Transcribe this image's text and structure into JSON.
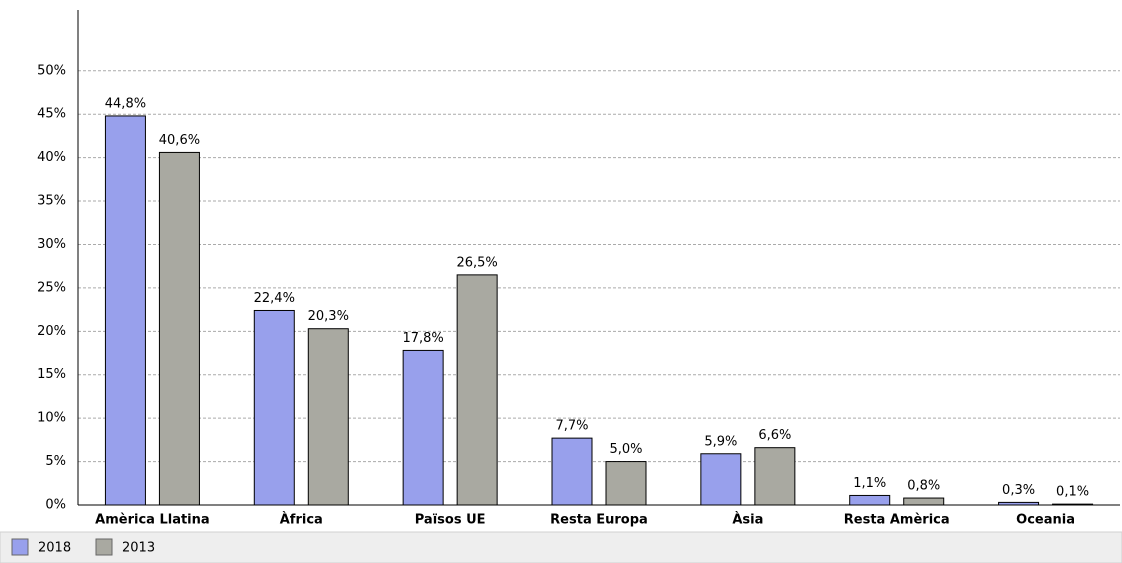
{
  "chart_data": {
    "type": "bar",
    "categories": [
      "Amèrica Llatina",
      "Àfrica",
      "Països UE",
      "Resta Europa",
      "Àsia",
      "Resta Amèrica",
      "Oceania"
    ],
    "series": [
      {
        "name": "2018",
        "color": "#98a0ec",
        "values": [
          44.8,
          22.4,
          17.8,
          7.7,
          5.9,
          1.1,
          0.3
        ],
        "value_labels": [
          "44,8%",
          "22,4%",
          "17,8%",
          "7,7%",
          "5,9%",
          "1,1%",
          "0,3%"
        ]
      },
      {
        "name": "2013",
        "color": "#a9a9a1",
        "values": [
          40.6,
          20.3,
          26.5,
          5.0,
          6.6,
          0.8,
          0.1
        ],
        "value_labels": [
          "40,6%",
          "20,3%",
          "26,5%",
          "5,0%",
          "6,6%",
          "0,8%",
          "0,1%"
        ]
      }
    ],
    "ylim": [
      0,
      57
    ],
    "yticks": [
      {
        "value": 0,
        "label": "0%"
      },
      {
        "value": 5,
        "label": "5%"
      },
      {
        "value": 10,
        "label": "10%"
      },
      {
        "value": 15,
        "label": "15%"
      },
      {
        "value": 20,
        "label": "20%"
      },
      {
        "value": 25,
        "label": "25%"
      },
      {
        "value": 30,
        "label": "30%"
      },
      {
        "value": 35,
        "label": "35%"
      },
      {
        "value": 40,
        "label": "40%"
      },
      {
        "value": 45,
        "label": "45%"
      },
      {
        "value": 50,
        "label": "50%"
      }
    ],
    "grid": true,
    "legend": "bottom"
  }
}
